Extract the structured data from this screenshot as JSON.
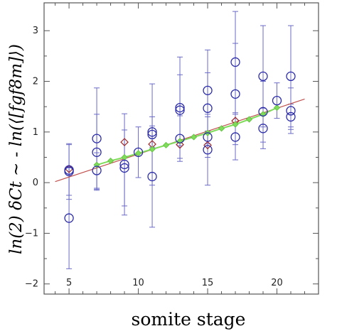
{
  "chart_data": {
    "type": "scatter",
    "title": "",
    "xlabel": "somite stage",
    "ylabel": "ln(2) δCt ~ - ln(⟨[fgf8m]⟩)",
    "xlim": [
      3.2,
      23
    ],
    "ylim": [
      -2.2,
      3.55
    ],
    "x_ticks": [
      5,
      10,
      15,
      20
    ],
    "y_ticks": [
      -2,
      -1,
      0,
      1,
      2,
      3
    ],
    "grid": false,
    "colors": {
      "measured": "#2b2ba8",
      "measured_errorbar": "#6b6bc8",
      "model_fit": "#c0504d",
      "model_fit_marker": "#a02828",
      "model_line": "#7fdc5a",
      "model_marker": "#7fdc5a"
    },
    "series": [
      {
        "name": "",
        "kind": "circles_with_errorbars",
        "points": [
          {
            "x": 5,
            "y": 0.25,
            "err": 0.5
          },
          {
            "x": 5,
            "y": 0.22,
            "err": 0.55
          },
          {
            "x": 5,
            "y": -0.7,
            "err": 1.0
          },
          {
            "x": 7,
            "y": 0.87,
            "err": 1.0
          },
          {
            "x": 7,
            "y": 0.6,
            "err": 0.75
          },
          {
            "x": 7,
            "y": 0.24,
            "err": 0.35
          },
          {
            "x": 9,
            "y": 0.36,
            "err": 1.0
          },
          {
            "x": 9,
            "y": 0.29,
            "err": 0.75
          },
          {
            "x": 10,
            "y": 0.6,
            "err": 0.5
          },
          {
            "x": 11,
            "y": 1.0,
            "err": 0.3
          },
          {
            "x": 11,
            "y": 0.95,
            "err": 1.0
          },
          {
            "x": 11,
            "y": 0.12,
            "err": 1.0
          },
          {
            "x": 13,
            "y": 1.48,
            "err": 1.0
          },
          {
            "x": 13,
            "y": 1.43,
            "err": 0.7
          },
          {
            "x": 13,
            "y": 0.87,
            "err": 0.45
          },
          {
            "x": 15,
            "y": 1.82,
            "err": 0.8
          },
          {
            "x": 15,
            "y": 1.47,
            "err": 0.7
          },
          {
            "x": 15,
            "y": 0.9,
            "err": 0.4
          },
          {
            "x": 15,
            "y": 0.65,
            "err": 0.7
          },
          {
            "x": 17,
            "y": 2.38,
            "err": 1.0
          },
          {
            "x": 17,
            "y": 1.75,
            "err": 1.0
          },
          {
            "x": 17,
            "y": 0.9,
            "err": 0.45
          },
          {
            "x": 19,
            "y": 2.1,
            "err": 1.0
          },
          {
            "x": 19,
            "y": 1.4,
            "err": 0.6
          },
          {
            "x": 19,
            "y": 1.07,
            "err": 0.4
          },
          {
            "x": 20,
            "y": 1.62,
            "err": 0.35
          },
          {
            "x": 21,
            "y": 2.1,
            "err": 1.0
          },
          {
            "x": 21,
            "y": 1.42,
            "err": 0.45
          },
          {
            "x": 21,
            "y": 1.3,
            "err": 0.25
          }
        ]
      },
      {
        "name": "",
        "kind": "line_with_diamonds",
        "line": {
          "x": [
            4,
            22
          ],
          "y": [
            0.02,
            1.65
          ]
        },
        "points": [
          {
            "x": 5,
            "y": 0.27
          },
          {
            "x": 9,
            "y": 0.8
          },
          {
            "x": 11,
            "y": 0.76
          },
          {
            "x": 13,
            "y": 0.75
          },
          {
            "x": 15,
            "y": 0.74
          },
          {
            "x": 17,
            "y": 1.22
          }
        ]
      },
      {
        "name": "",
        "kind": "line_with_diamonds",
        "line": {
          "x": [
            7,
            20
          ],
          "y": [
            0.35,
            1.55
          ]
        },
        "points": [
          {
            "x": 7,
            "y": 0.35
          },
          {
            "x": 8,
            "y": 0.43
          },
          {
            "x": 9,
            "y": 0.5
          },
          {
            "x": 10,
            "y": 0.58
          },
          {
            "x": 11,
            "y": 0.66
          },
          {
            "x": 12,
            "y": 0.74
          },
          {
            "x": 13,
            "y": 0.82
          },
          {
            "x": 14,
            "y": 0.9
          },
          {
            "x": 15,
            "y": 0.98
          },
          {
            "x": 16,
            "y": 1.07
          },
          {
            "x": 17,
            "y": 1.15
          },
          {
            "x": 18,
            "y": 1.25
          },
          {
            "x": 19,
            "y": 1.35
          },
          {
            "x": 20,
            "y": 1.48
          }
        ]
      }
    ]
  }
}
